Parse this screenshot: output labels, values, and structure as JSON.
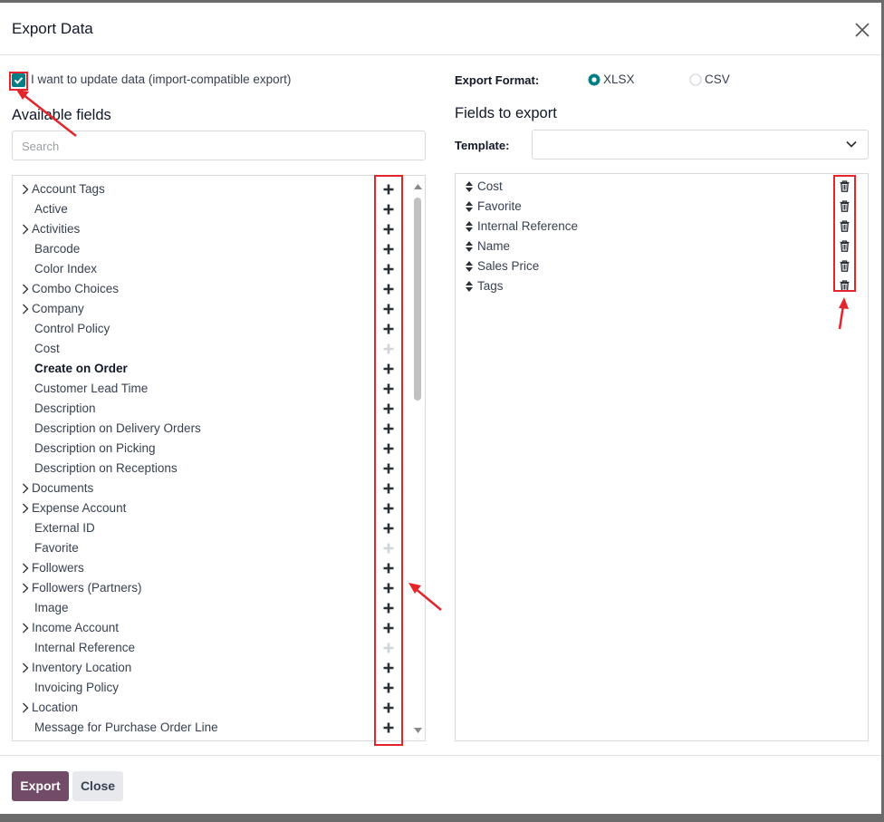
{
  "dialog": {
    "title": "Export Data",
    "import_compatible": {
      "label": "I want to update data (import-compatible export)",
      "checked": true
    },
    "available": {
      "title": "Available fields",
      "search_placeholder": "Search",
      "items": [
        {
          "label": "Account Tags",
          "expandable": true
        },
        {
          "label": "Active"
        },
        {
          "label": "Activities",
          "expandable": true
        },
        {
          "label": "Barcode"
        },
        {
          "label": "Color Index"
        },
        {
          "label": "Combo Choices",
          "expandable": true
        },
        {
          "label": "Company",
          "expandable": true
        },
        {
          "label": "Control Policy"
        },
        {
          "label": "Cost",
          "added": true
        },
        {
          "label": "Create on Order",
          "bold": true
        },
        {
          "label": "Customer Lead Time"
        },
        {
          "label": "Description"
        },
        {
          "label": "Description on Delivery Orders"
        },
        {
          "label": "Description on Picking"
        },
        {
          "label": "Description on Receptions"
        },
        {
          "label": "Documents",
          "expandable": true
        },
        {
          "label": "Expense Account",
          "expandable": true
        },
        {
          "label": "External ID"
        },
        {
          "label": "Favorite",
          "added": true
        },
        {
          "label": "Followers",
          "expandable": true
        },
        {
          "label": "Followers (Partners)",
          "expandable": true
        },
        {
          "label": "Image"
        },
        {
          "label": "Income Account",
          "expandable": true
        },
        {
          "label": "Internal Reference",
          "added": true
        },
        {
          "label": "Inventory Location",
          "expandable": true
        },
        {
          "label": "Invoicing Policy"
        },
        {
          "label": "Location",
          "expandable": true
        },
        {
          "label": "Message for Purchase Order Line"
        }
      ]
    },
    "format": {
      "label": "Export Format:",
      "options": [
        "XLSX",
        "CSV"
      ],
      "selected": 0
    },
    "export": {
      "title": "Fields to export",
      "template_label": "Template:",
      "items": [
        "Cost",
        "Favorite",
        "Internal Reference",
        "Name",
        "Sales Price",
        "Tags"
      ]
    },
    "buttons": {
      "export": "Export",
      "close": "Close"
    }
  }
}
